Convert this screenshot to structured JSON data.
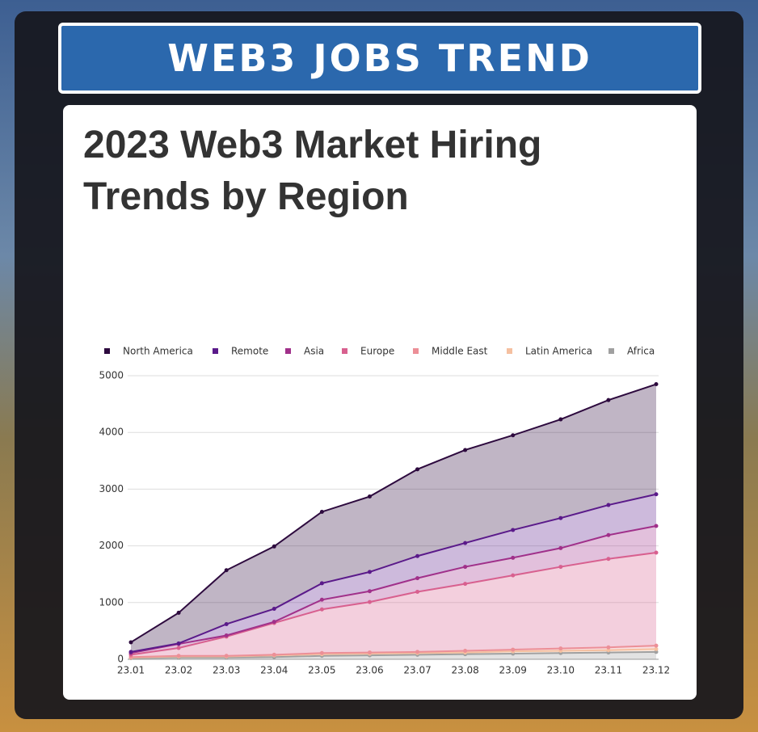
{
  "header": {
    "title": "WEB3 JOBS TREND"
  },
  "chart_data": {
    "type": "stacked-area",
    "title": "2023 Web3 Market Hiring Trends by Region",
    "categories": [
      "23.01",
      "23.02",
      "23.03",
      "23.04",
      "23.05",
      "23.06",
      "23.07",
      "23.08",
      "23.09",
      "23.10",
      "23.11",
      "23.12"
    ],
    "series": [
      {
        "name": "North America",
        "color": "#2d0a3e",
        "values": [
          170,
          540,
          950,
          1100,
          1260,
          1330,
          1530,
          1640,
          1670,
          1740,
          1850,
          1940
        ]
      },
      {
        "name": "Remote",
        "color": "#5a1a8a",
        "values": [
          20,
          10,
          200,
          230,
          290,
          340,
          390,
          420,
          490,
          530,
          530,
          560
        ]
      },
      {
        "name": "Asia",
        "color": "#a0308a",
        "values": [
          30,
          70,
          20,
          20,
          170,
          190,
          240,
          300,
          310,
          330,
          420,
          470
        ]
      },
      {
        "name": "Europe",
        "color": "#d8608f",
        "values": [
          40,
          140,
          340,
          560,
          770,
          890,
          1060,
          1180,
          1310,
          1440,
          1560,
          1640
        ]
      },
      {
        "name": "Middle East",
        "color": "#ec8f97",
        "values": [
          10,
          10,
          10,
          10,
          20,
          20,
          20,
          30,
          30,
          40,
          50,
          60
        ]
      },
      {
        "name": "Latin America",
        "color": "#f5c0a0",
        "values": [
          10,
          20,
          20,
          30,
          30,
          30,
          30,
          30,
          40,
          40,
          40,
          50
        ]
      },
      {
        "name": "Africa",
        "color": "#a0a0a0",
        "values": [
          20,
          30,
          30,
          40,
          60,
          70,
          80,
          90,
          100,
          110,
          120,
          130
        ]
      }
    ],
    "ylim": [
      0,
      5000
    ],
    "yticks": [
      0,
      1000,
      2000,
      3000,
      4000,
      5000
    ],
    "grid": true,
    "legend": "top"
  }
}
